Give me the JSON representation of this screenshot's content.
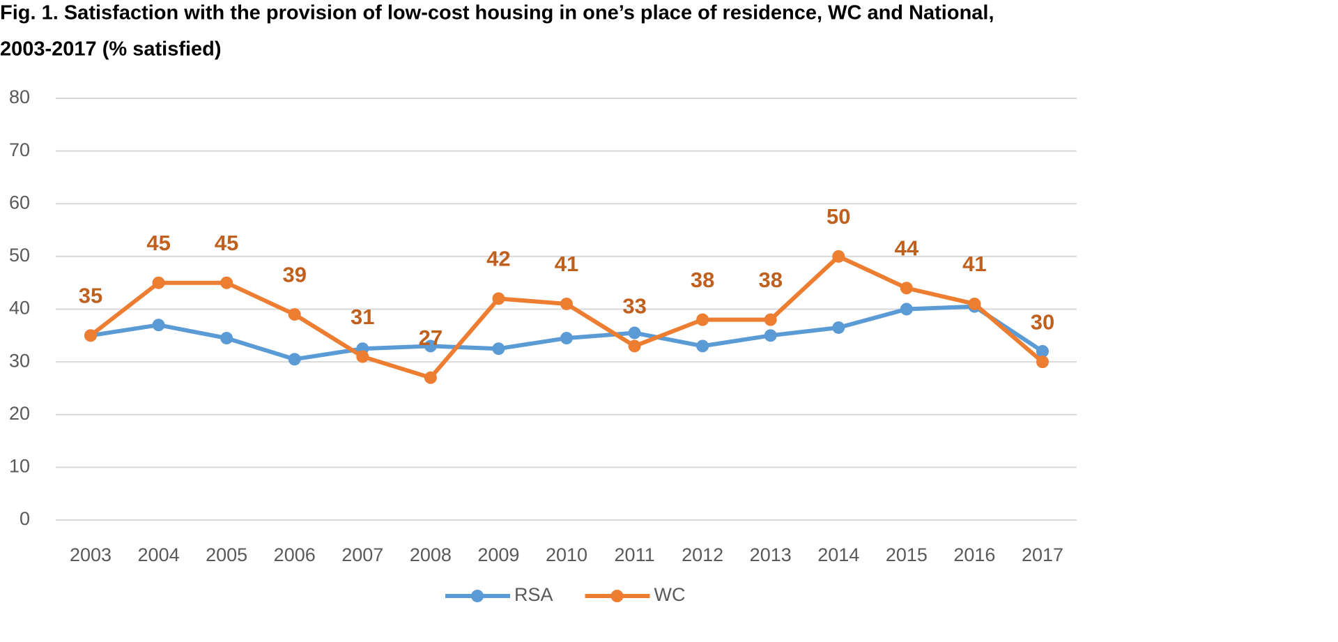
{
  "chart_data": {
    "type": "line",
    "title": [
      "Fig. 1. Satisfaction with the provision of low-cost housing in one’s place of residence, WC and National,",
      "2003-2017 (% satisfied)"
    ],
    "categories": [
      "2003",
      "2004",
      "2005",
      "2006",
      "2007",
      "2008",
      "2009",
      "2010",
      "2011",
      "2012",
      "2013",
      "2014",
      "2015",
      "2016",
      "2017"
    ],
    "series": [
      {
        "name": "RSA",
        "color": "#5b9bd5",
        "values": [
          35,
          37,
          34.5,
          30.5,
          32.5,
          33,
          32.5,
          34.5,
          35.5,
          33,
          35,
          36.5,
          40,
          40.5,
          32
        ]
      },
      {
        "name": "WC",
        "color": "#ed7d31",
        "values": [
          35,
          45,
          45,
          39,
          31,
          27,
          42,
          41,
          33,
          38,
          38,
          50,
          44,
          41,
          30
        ],
        "data_labels": true
      }
    ],
    "ylim": [
      0,
      80
    ],
    "yticks": [
      0,
      10,
      20,
      30,
      40,
      50,
      60,
      70,
      80
    ],
    "grid": true,
    "legend": "bottom"
  }
}
